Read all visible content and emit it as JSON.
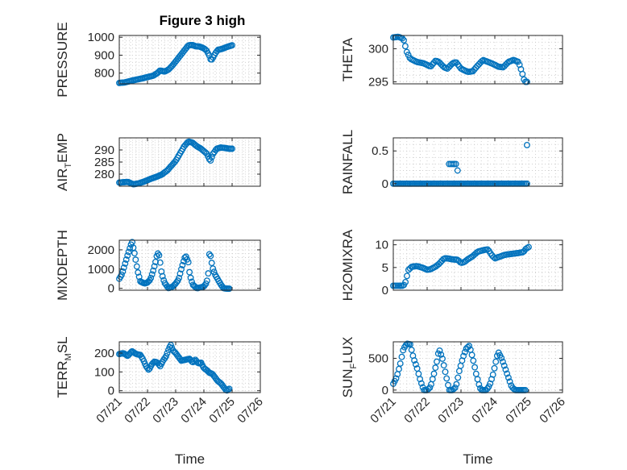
{
  "figure": {
    "title": "Figure 3 high",
    "marker_color": "#0072bd",
    "grid": "on (minor dotted)"
  },
  "chart_data": [
    {
      "type": "scatter",
      "id": "pressure",
      "ylabel": "PRESSURE",
      "yticks": [
        800,
        900,
        1000
      ],
      "ytick_labels": [
        "800",
        "900",
        "1000"
      ],
      "ylim": [
        740,
        1010
      ],
      "xlim": [
        0,
        5
      ],
      "curve": [
        [
          0.0,
          745
        ],
        [
          0.2,
          748
        ],
        [
          0.5,
          760
        ],
        [
          0.8,
          770
        ],
        [
          1.0,
          778
        ],
        [
          1.2,
          785
        ],
        [
          1.35,
          800
        ],
        [
          1.45,
          815
        ],
        [
          1.6,
          808
        ],
        [
          1.75,
          820
        ],
        [
          1.9,
          845
        ],
        [
          2.05,
          875
        ],
        [
          2.2,
          905
        ],
        [
          2.35,
          935
        ],
        [
          2.45,
          955
        ],
        [
          2.6,
          957
        ],
        [
          2.7,
          950
        ],
        [
          2.85,
          948
        ],
        [
          3.0,
          938
        ],
        [
          3.1,
          925
        ],
        [
          3.2,
          895
        ],
        [
          3.25,
          870
        ],
        [
          3.3,
          880
        ],
        [
          3.4,
          910
        ],
        [
          3.5,
          930
        ],
        [
          3.65,
          935
        ],
        [
          3.8,
          945
        ],
        [
          4.0,
          955
        ]
      ],
      "t_end": 4.0,
      "n": 90
    },
    {
      "type": "scatter",
      "id": "theta",
      "ylabel": "THETA",
      "yticks": [
        295,
        300
      ],
      "ytick_labels": [
        "295",
        "300"
      ],
      "ylim": [
        294.7,
        302
      ],
      "xlim": [
        0,
        5
      ],
      "curve": [
        [
          0.0,
          301.7
        ],
        [
          0.15,
          301.8
        ],
        [
          0.3,
          301.5
        ],
        [
          0.4,
          299.5
        ],
        [
          0.5,
          298.5
        ],
        [
          0.7,
          298.0
        ],
        [
          0.9,
          297.8
        ],
        [
          1.1,
          297.3
        ],
        [
          1.25,
          298.2
        ],
        [
          1.35,
          298.0
        ],
        [
          1.5,
          297.2
        ],
        [
          1.6,
          297.0
        ],
        [
          1.75,
          297.8
        ],
        [
          1.85,
          298.0
        ],
        [
          2.0,
          297.0
        ],
        [
          2.2,
          296.5
        ],
        [
          2.35,
          296.6
        ],
        [
          2.5,
          297.5
        ],
        [
          2.65,
          298.3
        ],
        [
          2.8,
          298.0
        ],
        [
          2.95,
          297.7
        ],
        [
          3.1,
          297.3
        ],
        [
          3.25,
          297.2
        ],
        [
          3.4,
          298.0
        ],
        [
          3.55,
          298.3
        ],
        [
          3.7,
          298.0
        ],
        [
          3.8,
          296.5
        ],
        [
          3.88,
          295.0
        ],
        [
          3.95,
          295.0
        ]
      ],
      "t_end": 3.95,
      "n": 90
    },
    {
      "type": "scatter",
      "id": "air_temp",
      "ylabel": "AIR_TEMP",
      "ylabel_parts": [
        "AIR",
        "T",
        "EMP"
      ],
      "yticks": [
        280,
        285,
        290
      ],
      "ytick_labels": [
        "280",
        "285",
        "290"
      ],
      "ylim": [
        275,
        295
      ],
      "xlim": [
        0,
        5
      ],
      "curve": [
        [
          0.0,
          276.5
        ],
        [
          0.3,
          276.8
        ],
        [
          0.5,
          275.8
        ],
        [
          0.7,
          276.2
        ],
        [
          0.9,
          277.0
        ],
        [
          1.1,
          278.0
        ],
        [
          1.3,
          278.8
        ],
        [
          1.5,
          279.8
        ],
        [
          1.7,
          281.5
        ],
        [
          1.85,
          283.5
        ],
        [
          2.0,
          285.5
        ],
        [
          2.15,
          288.5
        ],
        [
          2.3,
          291.5
        ],
        [
          2.45,
          293.5
        ],
        [
          2.6,
          293.0
        ],
        [
          2.75,
          291.5
        ],
        [
          2.9,
          290.5
        ],
        [
          3.0,
          289.5
        ],
        [
          3.1,
          288.5
        ],
        [
          3.2,
          286.0
        ],
        [
          3.25,
          285.5
        ],
        [
          3.3,
          288.0
        ],
        [
          3.45,
          290.5
        ],
        [
          3.6,
          291.0
        ],
        [
          3.75,
          290.8
        ],
        [
          3.9,
          290.5
        ],
        [
          4.0,
          290.5
        ]
      ],
      "t_end": 4.0,
      "n": 90
    },
    {
      "type": "scatter",
      "id": "rainfall",
      "ylabel": "RAINFALL",
      "yticks": [
        0,
        0.5
      ],
      "ytick_labels": [
        "0",
        "0.5"
      ],
      "ylim": [
        -0.04,
        0.7
      ],
      "xlim": [
        0,
        5
      ],
      "curve": [
        [
          0.0,
          0
        ],
        [
          3.95,
          0
        ]
      ],
      "extra_points": [
        [
          1.65,
          0.3
        ],
        [
          1.7,
          0.3
        ],
        [
          1.75,
          0.3
        ],
        [
          1.8,
          0.3
        ],
        [
          1.85,
          0.3
        ],
        [
          1.9,
          0.2
        ],
        [
          3.95,
          0.59
        ]
      ],
      "t_end": 3.95,
      "n": 90
    },
    {
      "type": "scatter",
      "id": "mixdepth",
      "ylabel": "MIXDEPTH",
      "yticks": [
        0,
        1000,
        2000
      ],
      "ytick_labels": [
        "0",
        "1000",
        "2000"
      ],
      "ylim": [
        -100,
        2500
      ],
      "xlim": [
        0,
        5
      ],
      "curve": [
        [
          0.0,
          500
        ],
        [
          0.1,
          750
        ],
        [
          0.2,
          1250
        ],
        [
          0.3,
          1750
        ],
        [
          0.4,
          2200
        ],
        [
          0.45,
          2450
        ],
        [
          0.55,
          1750
        ],
        [
          0.65,
          900
        ],
        [
          0.75,
          350
        ],
        [
          0.9,
          250
        ],
        [
          1.0,
          300
        ],
        [
          1.1,
          450
        ],
        [
          1.2,
          900
        ],
        [
          1.3,
          1450
        ],
        [
          1.35,
          1850
        ],
        [
          1.42,
          1700
        ],
        [
          1.5,
          800
        ],
        [
          1.6,
          300
        ],
        [
          1.75,
          0
        ],
        [
          1.9,
          100
        ],
        [
          2.0,
          250
        ],
        [
          2.1,
          450
        ],
        [
          2.2,
          1000
        ],
        [
          2.3,
          1500
        ],
        [
          2.35,
          1700
        ],
        [
          2.45,
          1350
        ],
        [
          2.5,
          700
        ],
        [
          2.6,
          200
        ],
        [
          2.75,
          0
        ],
        [
          2.9,
          50
        ],
        [
          3.0,
          100
        ],
        [
          3.1,
          300
        ],
        [
          3.15,
          700
        ],
        [
          3.2,
          1900
        ],
        [
          3.25,
          1600
        ],
        [
          3.3,
          1100
        ],
        [
          3.4,
          700
        ],
        [
          3.5,
          450
        ],
        [
          3.6,
          200
        ],
        [
          3.7,
          0
        ],
        [
          3.85,
          -20
        ],
        [
          3.9,
          -20
        ]
      ],
      "t_end": 3.9,
      "n": 95
    },
    {
      "type": "scatter",
      "id": "h2omixra",
      "ylabel": "H2OMIXRA",
      "yticks": [
        0,
        5,
        10
      ],
      "ytick_labels": [
        "0",
        "5",
        "10"
      ],
      "ylim": [
        0,
        11
      ],
      "xlim": [
        0,
        5
      ],
      "curve": [
        [
          0.0,
          1.0
        ],
        [
          0.3,
          1.0
        ],
        [
          0.35,
          1.5
        ],
        [
          0.45,
          4.5
        ],
        [
          0.55,
          5.2
        ],
        [
          0.7,
          5.3
        ],
        [
          0.85,
          5.0
        ],
        [
          1.0,
          4.5
        ],
        [
          1.1,
          4.6
        ],
        [
          1.25,
          5.2
        ],
        [
          1.35,
          5.8
        ],
        [
          1.5,
          7.0
        ],
        [
          1.6,
          7.0
        ],
        [
          1.75,
          6.8
        ],
        [
          1.9,
          6.7
        ],
        [
          2.0,
          6.0
        ],
        [
          2.1,
          6.2
        ],
        [
          2.2,
          6.8
        ],
        [
          2.35,
          7.5
        ],
        [
          2.5,
          8.5
        ],
        [
          2.65,
          8.8
        ],
        [
          2.8,
          9.0
        ],
        [
          2.9,
          7.8
        ],
        [
          3.0,
          7.0
        ],
        [
          3.15,
          7.4
        ],
        [
          3.3,
          7.8
        ],
        [
          3.5,
          8.0
        ],
        [
          3.7,
          8.2
        ],
        [
          3.85,
          8.4
        ],
        [
          3.9,
          9.0
        ],
        [
          4.0,
          9.5
        ]
      ],
      "t_end": 4.0,
      "n": 90
    },
    {
      "type": "scatter",
      "id": "terr_msl",
      "ylabel": "TERR_MSL",
      "ylabel_parts": [
        "TERR",
        "M",
        "SL"
      ],
      "yticks": [
        0,
        100,
        200
      ],
      "ytick_labels": [
        "0",
        "100",
        "200"
      ],
      "ylim": [
        -10,
        260
      ],
      "xlim": [
        0,
        5
      ],
      "xticks": [
        0,
        1,
        2,
        3,
        4,
        5
      ],
      "xtick_labels": [
        "07/21",
        "07/22",
        "07/23",
        "07/24",
        "07/25",
        "07/26"
      ],
      "xlabel": "Time",
      "curve": [
        [
          0.0,
          195
        ],
        [
          0.15,
          200
        ],
        [
          0.3,
          185
        ],
        [
          0.45,
          210
        ],
        [
          0.6,
          195
        ],
        [
          0.75,
          190
        ],
        [
          0.85,
          165
        ],
        [
          0.95,
          130
        ],
        [
          1.05,
          110
        ],
        [
          1.15,
          140
        ],
        [
          1.25,
          155
        ],
        [
          1.35,
          150
        ],
        [
          1.45,
          130
        ],
        [
          1.55,
          160
        ],
        [
          1.65,
          180
        ],
        [
          1.75,
          220
        ],
        [
          1.82,
          245
        ],
        [
          1.9,
          215
        ],
        [
          2.0,
          200
        ],
        [
          2.1,
          180
        ],
        [
          2.2,
          160
        ],
        [
          2.35,
          165
        ],
        [
          2.5,
          170
        ],
        [
          2.6,
          150
        ],
        [
          2.7,
          165
        ],
        [
          2.8,
          145
        ],
        [
          2.9,
          150
        ],
        [
          3.0,
          120
        ],
        [
          3.1,
          110
        ],
        [
          3.2,
          95
        ],
        [
          3.3,
          90
        ],
        [
          3.4,
          70
        ],
        [
          3.5,
          50
        ],
        [
          3.6,
          40
        ],
        [
          3.7,
          20
        ],
        [
          3.8,
          0
        ],
        [
          3.9,
          10
        ]
      ],
      "t_end": 3.9,
      "n": 95
    },
    {
      "type": "scatter",
      "id": "sun_flux",
      "ylabel": "SUN_FLUX",
      "ylabel_parts": [
        "SUN",
        "F",
        "LUX"
      ],
      "yticks": [
        0,
        500
      ],
      "ytick_labels": [
        "0",
        "500"
      ],
      "ylim": [
        -40,
        760
      ],
      "xlim": [
        0,
        5
      ],
      "xticks": [
        0,
        1,
        2,
        3,
        4,
        5
      ],
      "xtick_labels": [
        "07/21",
        "07/22",
        "07/23",
        "07/24",
        "07/25",
        "07/26"
      ],
      "xlabel": "Time",
      "curve": [
        [
          0.0,
          100
        ],
        [
          0.1,
          200
        ],
        [
          0.2,
          400
        ],
        [
          0.3,
          650
        ],
        [
          0.4,
          730
        ],
        [
          0.5,
          720
        ],
        [
          0.6,
          500
        ],
        [
          0.7,
          350
        ],
        [
          0.8,
          150
        ],
        [
          0.9,
          0
        ],
        [
          1.0,
          0
        ],
        [
          1.1,
          50
        ],
        [
          1.2,
          250
        ],
        [
          1.3,
          480
        ],
        [
          1.35,
          650
        ],
        [
          1.45,
          500
        ],
        [
          1.55,
          250
        ],
        [
          1.65,
          0
        ],
        [
          1.75,
          0
        ],
        [
          1.85,
          50
        ],
        [
          1.95,
          300
        ],
        [
          2.05,
          500
        ],
        [
          2.15,
          650
        ],
        [
          2.25,
          700
        ],
        [
          2.35,
          500
        ],
        [
          2.45,
          250
        ],
        [
          2.55,
          50
        ],
        [
          2.6,
          0
        ],
        [
          2.75,
          0
        ],
        [
          2.85,
          80
        ],
        [
          2.95,
          250
        ],
        [
          3.05,
          500
        ],
        [
          3.1,
          600
        ],
        [
          3.2,
          500
        ],
        [
          3.3,
          350
        ],
        [
          3.4,
          200
        ],
        [
          3.5,
          50
        ],
        [
          3.6,
          0
        ],
        [
          3.75,
          0
        ],
        [
          3.9,
          0
        ]
      ],
      "t_end": 3.9,
      "n": 95
    }
  ]
}
